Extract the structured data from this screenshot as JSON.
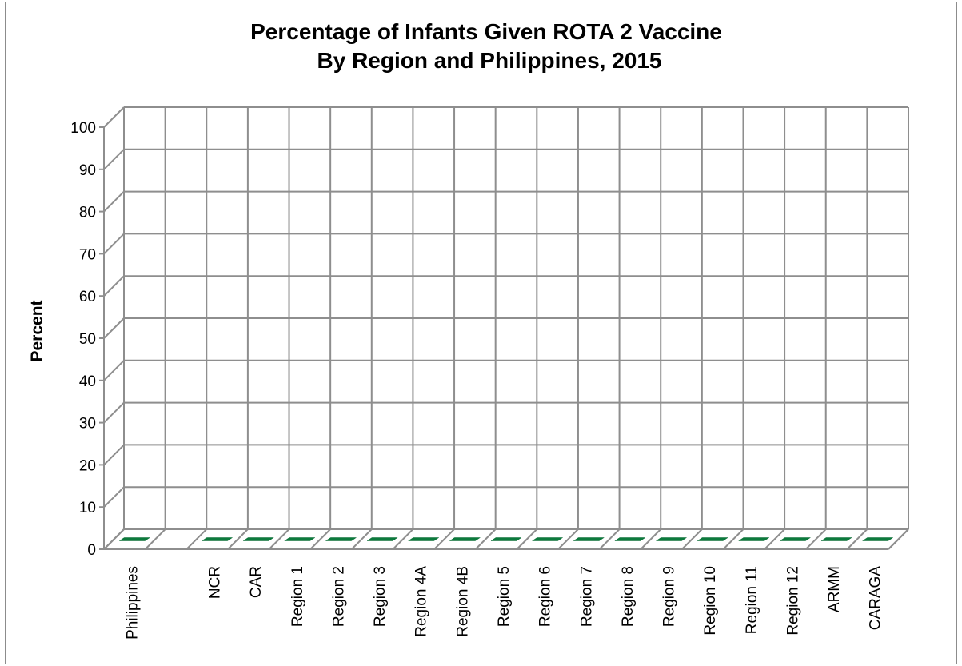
{
  "chart_data": {
    "type": "bar",
    "title": "Percentage of Infants Given ROTA 2 Vaccine",
    "subtitle": "By Region and Philippines, 2015",
    "xlabel": "",
    "ylabel": "Percent",
    "ylim": [
      0,
      100
    ],
    "yticks": [
      "0",
      "10",
      "20",
      "30",
      "40",
      "50",
      "60",
      "70",
      "80",
      "90",
      "100"
    ],
    "categories": [
      "Philippines",
      "",
      "NCR",
      "CAR",
      "Region 1",
      "Region 2",
      "Region 3",
      "Region 4A",
      "Region 4B",
      "Region 5",
      "Region 6",
      "Region 7",
      "Region 8",
      "Region 9",
      "Region 10",
      "Region 11",
      "Region 12",
      "ARMM",
      "CARAGA"
    ],
    "values": [
      0,
      null,
      0,
      0,
      0,
      0,
      0,
      0,
      0,
      0,
      0,
      0,
      0,
      0,
      0,
      0,
      0,
      0,
      0
    ],
    "grid": true,
    "three_d": true,
    "bar_color": "#0b7a3c",
    "grid_color": "#8e8e8e"
  }
}
